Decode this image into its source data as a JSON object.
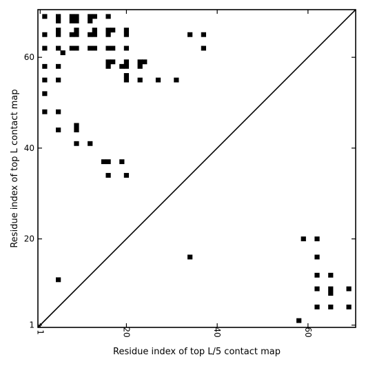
{
  "chart_data": {
    "type": "scatter",
    "xlabel": "Residue index of top L/5 contact map",
    "ylabel": "Residue index of top L contact map",
    "xlim": [
      0.5,
      70.5
    ],
    "ylim": [
      0.5,
      70.5
    ],
    "x_ticks": [
      {
        "value": 1,
        "label": "1"
      },
      {
        "value": 20,
        "label": "20"
      },
      {
        "value": 40,
        "label": "40"
      },
      {
        "value": 60,
        "label": "60"
      }
    ],
    "y_ticks": [
      {
        "value": 1,
        "label": "1"
      },
      {
        "value": 20,
        "label": "20"
      },
      {
        "value": 40,
        "label": "40"
      },
      {
        "value": 60,
        "label": "60"
      }
    ],
    "diagonal": true,
    "marker": "square",
    "marker_color": "#000000",
    "series": [
      {
        "region": "upper-left",
        "points": [
          [
            2,
            69
          ],
          [
            2,
            65
          ],
          [
            2,
            62
          ],
          [
            2,
            58
          ],
          [
            2,
            55
          ],
          [
            2,
            52
          ],
          [
            2,
            48
          ],
          [
            5,
            69
          ],
          [
            5,
            68
          ],
          [
            5,
            66
          ],
          [
            5,
            65
          ],
          [
            5,
            62
          ],
          [
            5,
            58
          ],
          [
            5,
            55
          ],
          [
            5,
            48
          ],
          [
            5,
            44
          ],
          [
            6,
            61
          ],
          [
            8,
            69
          ],
          [
            8,
            68
          ],
          [
            8,
            65
          ],
          [
            8,
            62
          ],
          [
            9,
            69
          ],
          [
            9,
            68
          ],
          [
            9,
            66
          ],
          [
            9,
            65
          ],
          [
            9,
            62
          ],
          [
            9,
            45
          ],
          [
            9,
            44
          ],
          [
            9,
            41
          ],
          [
            12,
            69
          ],
          [
            12,
            68
          ],
          [
            12,
            65
          ],
          [
            12,
            62
          ],
          [
            12,
            41
          ],
          [
            13,
            69
          ],
          [
            13,
            66
          ],
          [
            13,
            65
          ],
          [
            13,
            62
          ],
          [
            15,
            37
          ],
          [
            16,
            69
          ],
          [
            16,
            66
          ],
          [
            16,
            65
          ],
          [
            16,
            62
          ],
          [
            16,
            59
          ],
          [
            16,
            58
          ],
          [
            16,
            37
          ],
          [
            16,
            34
          ],
          [
            17,
            66
          ],
          [
            17,
            62
          ],
          [
            17,
            59
          ],
          [
            19,
            58
          ],
          [
            19,
            37
          ],
          [
            20,
            66
          ],
          [
            20,
            65
          ],
          [
            20,
            62
          ],
          [
            20,
            59
          ],
          [
            20,
            58
          ],
          [
            20,
            56
          ],
          [
            20,
            55
          ],
          [
            20,
            34
          ],
          [
            23,
            59
          ],
          [
            23,
            58
          ],
          [
            23,
            55
          ],
          [
            24,
            59
          ],
          [
            27,
            55
          ],
          [
            31,
            55
          ],
          [
            34,
            65
          ],
          [
            37,
            65
          ],
          [
            37,
            62
          ]
        ]
      },
      {
        "region": "lower-right",
        "points": [
          [
            5,
            11
          ],
          [
            34,
            16
          ],
          [
            58,
            2
          ],
          [
            59,
            20
          ],
          [
            62,
            20
          ],
          [
            62,
            16
          ],
          [
            62,
            12
          ],
          [
            62,
            9
          ],
          [
            62,
            5
          ],
          [
            65,
            12
          ],
          [
            65,
            9
          ],
          [
            65,
            8
          ],
          [
            65,
            5
          ],
          [
            69,
            9
          ],
          [
            69,
            5
          ]
        ]
      }
    ]
  }
}
